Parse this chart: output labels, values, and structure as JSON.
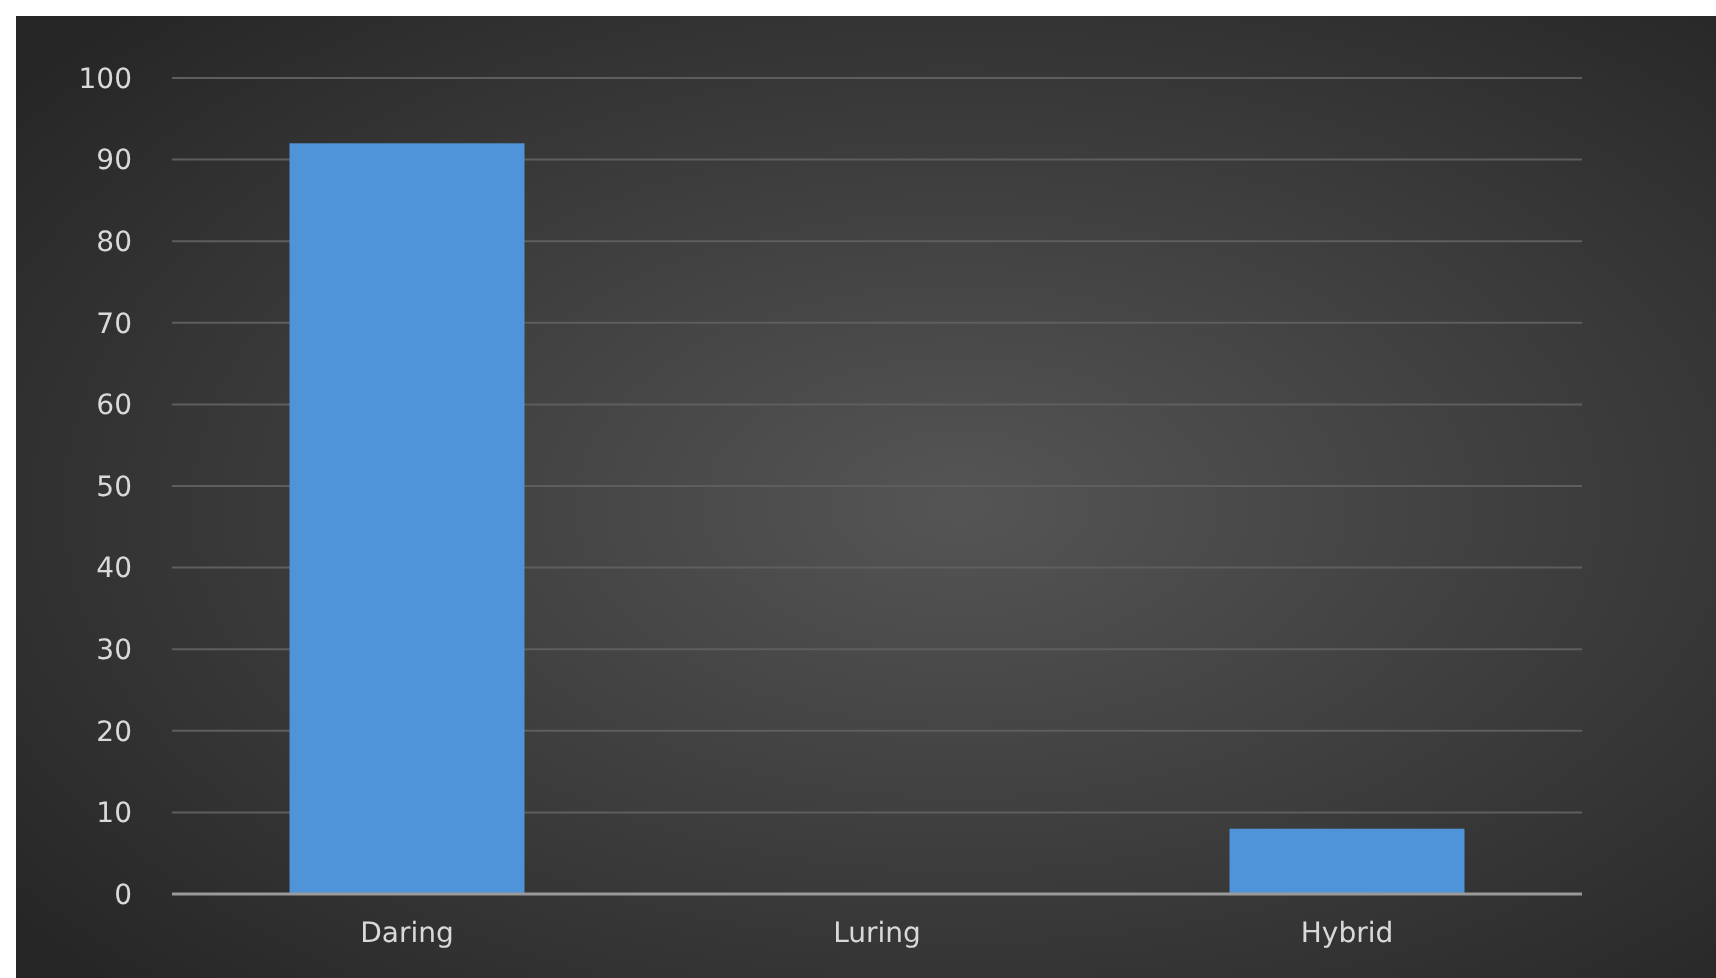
{
  "chart_data": {
    "type": "bar",
    "categories": [
      "Daring",
      "Luring",
      "Hybrid"
    ],
    "values": [
      92,
      0,
      8
    ],
    "color": "#4f93d8",
    "ylim": [
      0,
      100
    ],
    "yticks": [
      0,
      10,
      20,
      30,
      40,
      50,
      60,
      70,
      80,
      90,
      100
    ],
    "grid": "y"
  }
}
